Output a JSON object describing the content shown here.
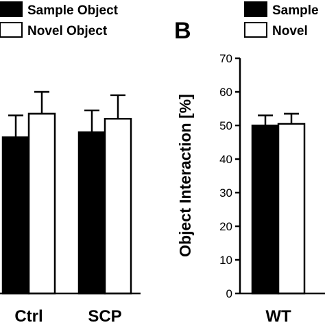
{
  "panel_label": "B",
  "legend": {
    "left": [
      "Sample Object",
      "Novel Object"
    ],
    "right": [
      "Sample",
      "Novel"
    ]
  },
  "chart_data": [
    {
      "type": "bar",
      "title": "",
      "xlabel": "",
      "ylabel": "",
      "categories": [
        "Ctrl",
        "SCP"
      ],
      "ylim": [
        0,
        70
      ],
      "series": [
        {
          "name": "Sample Object",
          "values": [
            46.5,
            48
          ],
          "errors": [
            6.5,
            6.5
          ],
          "color": "#000000"
        },
        {
          "name": "Novel Object",
          "values": [
            53.5,
            52
          ],
          "errors": [
            6.5,
            7
          ],
          "color": "#ffffff"
        }
      ]
    },
    {
      "type": "bar",
      "title": "",
      "xlabel": "",
      "ylabel": "Object Interaction [%]",
      "categories": [
        "WT"
      ],
      "ylim": [
        0,
        70
      ],
      "yticks": [
        "0",
        "10",
        "20",
        "30",
        "40",
        "50",
        "60",
        "70"
      ],
      "series": [
        {
          "name": "Sample",
          "values": [
            50
          ],
          "errors": [
            3
          ],
          "color": "#000000"
        },
        {
          "name": "Novel",
          "values": [
            50.5
          ],
          "errors": [
            3
          ],
          "color": "#ffffff"
        }
      ]
    }
  ]
}
